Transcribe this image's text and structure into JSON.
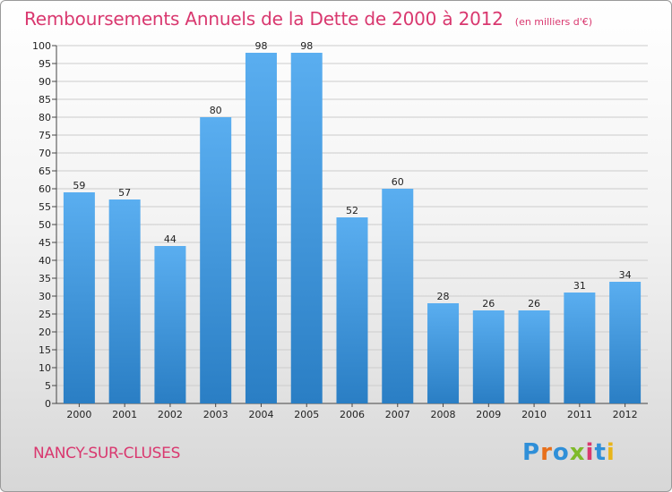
{
  "header": {
    "title": "Remboursements Annuels de la Dette de 2000 à 2012",
    "subtitle": "(en milliers d'€)"
  },
  "footer": {
    "commune": "NANCY-SUR-CLUSES",
    "logo": "Proxiti",
    "logo_colors": [
      "#2f8fd8",
      "#e86f1a",
      "#2f8fd8",
      "#7fba2a",
      "#d9386f",
      "#2f8fd8",
      "#e8b51a"
    ]
  },
  "colors": {
    "bar_light": "#5aaef0",
    "bar_dark": "#2a7ec4",
    "title": "#d9386f",
    "grid": "#cccccc"
  },
  "chart_data": {
    "type": "bar",
    "categories": [
      "2000",
      "2001",
      "2002",
      "2003",
      "2004",
      "2005",
      "2006",
      "2007",
      "2008",
      "2009",
      "2010",
      "2011",
      "2012"
    ],
    "values": [
      59,
      57,
      44,
      80,
      98,
      98,
      52,
      60,
      28,
      26,
      26,
      31,
      34
    ],
    "title": "Remboursements Annuels de la Dette de 2000 à 2012",
    "ylim": [
      0,
      100
    ],
    "yticks": [
      0,
      5,
      10,
      15,
      20,
      25,
      30,
      35,
      40,
      45,
      50,
      55,
      60,
      65,
      70,
      75,
      80,
      85,
      90,
      95,
      100
    ],
    "grid": true,
    "legend": "none",
    "data_labels": true
  }
}
